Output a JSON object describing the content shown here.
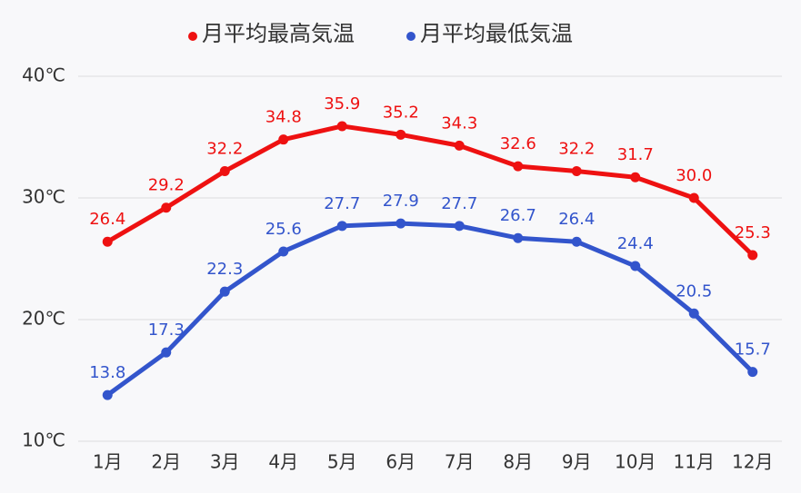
{
  "chart_data": {
    "type": "line",
    "categories": [
      "1月",
      "2月",
      "3月",
      "4月",
      "5月",
      "6月",
      "7月",
      "8月",
      "9月",
      "10月",
      "11月",
      "12月"
    ],
    "series": [
      {
        "name": "月平均最高気温",
        "color": "#ee1111",
        "values": [
          26.4,
          29.2,
          32.2,
          34.8,
          35.9,
          35.2,
          34.3,
          32.6,
          32.2,
          31.7,
          30.0,
          25.3
        ],
        "value_labels": [
          "26.4",
          "29.2",
          "32.2",
          "34.8",
          "35.9",
          "35.2",
          "34.3",
          "32.6",
          "32.2",
          "31.7",
          "30.0",
          "25.3"
        ]
      },
      {
        "name": "月平均最低気温",
        "color": "#3355cc",
        "values": [
          13.8,
          17.3,
          22.3,
          25.6,
          27.7,
          27.9,
          27.7,
          26.7,
          26.4,
          24.4,
          20.5,
          15.7
        ],
        "value_labels": [
          "13.8",
          "17.3",
          "22.3",
          "25.6",
          "27.7",
          "27.9",
          "27.7",
          "26.7",
          "26.4",
          "24.4",
          "20.5",
          "15.7"
        ]
      }
    ],
    "ylim": [
      10,
      40
    ],
    "yticks": [
      {
        "value": 10,
        "label": "10℃"
      },
      {
        "value": 20,
        "label": "20℃"
      },
      {
        "value": 30,
        "label": "30℃"
      },
      {
        "value": 40,
        "label": "40℃"
      }
    ],
    "grid": true
  }
}
